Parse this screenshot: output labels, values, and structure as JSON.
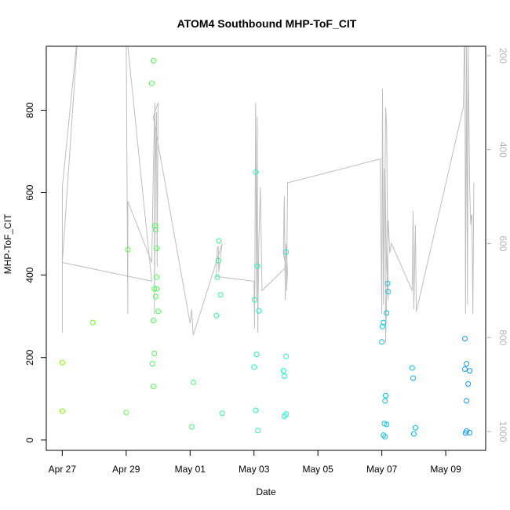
{
  "chart_data": {
    "type": "scatter",
    "title": "ATOM4 Southbound MHP-ToF_CIT",
    "xlabel": "Date",
    "ylabel": "MHP-ToF_CIT",
    "x_tick_labels": [
      "Apr 27",
      "Apr 29",
      "May 01",
      "May 03",
      "May 05",
      "May 07",
      "May 09"
    ],
    "x_tick_days": [
      0,
      2,
      4,
      6,
      8,
      10,
      12
    ],
    "y_ticks": [
      0,
      200,
      400,
      600,
      800
    ],
    "y_range": [
      -25,
      955
    ],
    "y2_ticks": [
      200,
      400,
      600,
      800,
      1000
    ],
    "y2_range": [
      1040,
      180
    ],
    "x_range": [
      -0.5,
      13.25
    ],
    "grid": false,
    "colors": {
      "points_start": "#80ff00",
      "points_mid": "#00ffcc",
      "points_end": "#0099ff",
      "line": "#bebebe",
      "axis": "#000000",
      "right_axis": "#b5b5b5"
    },
    "points": [
      [
        0.0,
        70
      ],
      [
        0.0,
        188
      ],
      [
        0.95,
        285
      ],
      [
        2.0,
        67
      ],
      [
        2.05,
        462
      ],
      [
        2.8,
        865
      ],
      [
        2.85,
        920
      ],
      [
        2.85,
        290
      ],
      [
        2.82,
        185
      ],
      [
        2.88,
        210
      ],
      [
        2.85,
        130
      ],
      [
        2.88,
        367
      ],
      [
        2.9,
        520
      ],
      [
        2.92,
        510
      ],
      [
        2.92,
        348
      ],
      [
        2.95,
        367
      ],
      [
        2.95,
        395
      ],
      [
        2.95,
        465
      ],
      [
        3.0,
        312
      ],
      [
        4.05,
        32
      ],
      [
        4.1,
        140
      ],
      [
        4.82,
        302
      ],
      [
        4.85,
        395
      ],
      [
        4.88,
        435
      ],
      [
        4.9,
        483
      ],
      [
        4.95,
        352
      ],
      [
        5.0,
        65
      ],
      [
        6.0,
        177
      ],
      [
        6.02,
        340
      ],
      [
        6.05,
        72
      ],
      [
        6.05,
        650
      ],
      [
        6.08,
        208
      ],
      [
        6.1,
        422
      ],
      [
        6.12,
        23
      ],
      [
        6.15,
        313
      ],
      [
        6.92,
        168
      ],
      [
        6.95,
        155
      ],
      [
        6.95,
        58
      ],
      [
        7.0,
        63
      ],
      [
        7.0,
        203
      ],
      [
        7.0,
        456
      ],
      [
        10.0,
        238
      ],
      [
        10.02,
        275
      ],
      [
        10.05,
        285
      ],
      [
        10.05,
        12
      ],
      [
        10.08,
        40
      ],
      [
        10.1,
        95
      ],
      [
        10.1,
        8
      ],
      [
        10.12,
        108
      ],
      [
        10.15,
        308
      ],
      [
        10.15,
        38
      ],
      [
        10.18,
        380
      ],
      [
        10.2,
        360
      ],
      [
        10.95,
        175
      ],
      [
        10.98,
        150
      ],
      [
        11.0,
        15
      ],
      [
        11.05,
        30
      ],
      [
        12.6,
        246
      ],
      [
        12.6,
        172
      ],
      [
        12.62,
        17
      ],
      [
        12.65,
        22
      ],
      [
        12.65,
        185
      ],
      [
        12.65,
        95
      ],
      [
        12.7,
        136
      ],
      [
        12.75,
        18
      ],
      [
        12.75,
        168
      ]
    ],
    "line_y2": [
      [
        0.0,
        790
      ],
      [
        0.0,
        480
      ],
      [
        0.5,
        140
      ],
      [
        0.0,
        640
      ],
      [
        2.8,
        680
      ],
      [
        2.0,
        145
      ],
      [
        2.05,
        750
      ],
      [
        2.05,
        510
      ],
      [
        2.8,
        640
      ],
      [
        2.85,
        450
      ],
      [
        2.88,
        350
      ],
      [
        2.9,
        300
      ],
      [
        2.88,
        750
      ],
      [
        2.92,
        420
      ],
      [
        2.95,
        320
      ],
      [
        2.97,
        650
      ],
      [
        3.0,
        300
      ],
      [
        2.85,
        330
      ],
      [
        4.0,
        770
      ],
      [
        4.05,
        740
      ],
      [
        4.1,
        795
      ],
      [
        5.0,
        600
      ],
      [
        4.9,
        660
      ],
      [
        4.88,
        605
      ],
      [
        4.85,
        610
      ],
      [
        4.82,
        670
      ],
      [
        6.0,
        680
      ],
      [
        6.02,
        780
      ],
      [
        6.05,
        300
      ],
      [
        6.08,
        720
      ],
      [
        6.1,
        330
      ],
      [
        6.12,
        790
      ],
      [
        6.15,
        600
      ],
      [
        6.2,
        480
      ],
      [
        6.25,
        700
      ],
      [
        7.0,
        650
      ],
      [
        6.92,
        620
      ],
      [
        6.95,
        500
      ],
      [
        6.98,
        720
      ],
      [
        7.0,
        600
      ],
      [
        7.05,
        660
      ],
      [
        7.02,
        700
      ],
      [
        7.05,
        470
      ],
      [
        7.08,
        470
      ],
      [
        9.95,
        420
      ],
      [
        10.0,
        750
      ],
      [
        10.02,
        270
      ],
      [
        10.05,
        730
      ],
      [
        10.08,
        440
      ],
      [
        10.1,
        460
      ],
      [
        10.12,
        310
      ],
      [
        10.15,
        350
      ],
      [
        10.18,
        590
      ],
      [
        10.2,
        720
      ],
      [
        10.15,
        650
      ],
      [
        10.1,
        440
      ],
      [
        10.12,
        810
      ],
      [
        10.2,
        550
      ],
      [
        10.25,
        620
      ],
      [
        10.3,
        600
      ],
      [
        10.95,
        700
      ],
      [
        10.98,
        530
      ],
      [
        11.0,
        740
      ],
      [
        11.05,
        560
      ],
      [
        11.08,
        745
      ],
      [
        12.55,
        310
      ],
      [
        12.6,
        110
      ],
      [
        12.62,
        750
      ],
      [
        12.65,
        180
      ],
      [
        12.68,
        730
      ],
      [
        12.7,
        180
      ],
      [
        12.75,
        480
      ],
      [
        12.78,
        560
      ],
      [
        12.8,
        540
      ],
      [
        12.82,
        540
      ],
      [
        12.85,
        750
      ],
      [
        12.88,
        470
      ]
    ]
  }
}
